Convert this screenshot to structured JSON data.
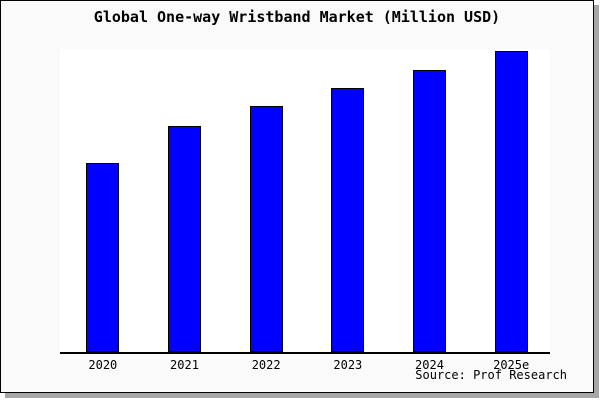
{
  "window": {
    "panel_background": "#fafafa",
    "panel_border_color": "#000000",
    "shadow_color": "#a6a6a6"
  },
  "chart_data": {
    "type": "bar",
    "title": "Global One-way Wristband Market (Million USD)",
    "categories": [
      "2020",
      "2021",
      "2022",
      "2023",
      "2024",
      "2025e"
    ],
    "values": [
      62.8,
      75.2,
      81.6,
      87.9,
      93.7,
      100
    ],
    "values_note": "relative index, max bar (2025e) = 100; chart shows no numeric y-axis labels",
    "xlabel": "",
    "ylabel": "",
    "ylim": [
      0,
      100.7
    ],
    "grid": false,
    "legend": "none",
    "y_axis_visible": false,
    "bar_color": "#0000ff",
    "bar_border_color": "#000000",
    "plot_background": "#ffffff"
  },
  "source": {
    "label": "Source: Prof Research"
  }
}
